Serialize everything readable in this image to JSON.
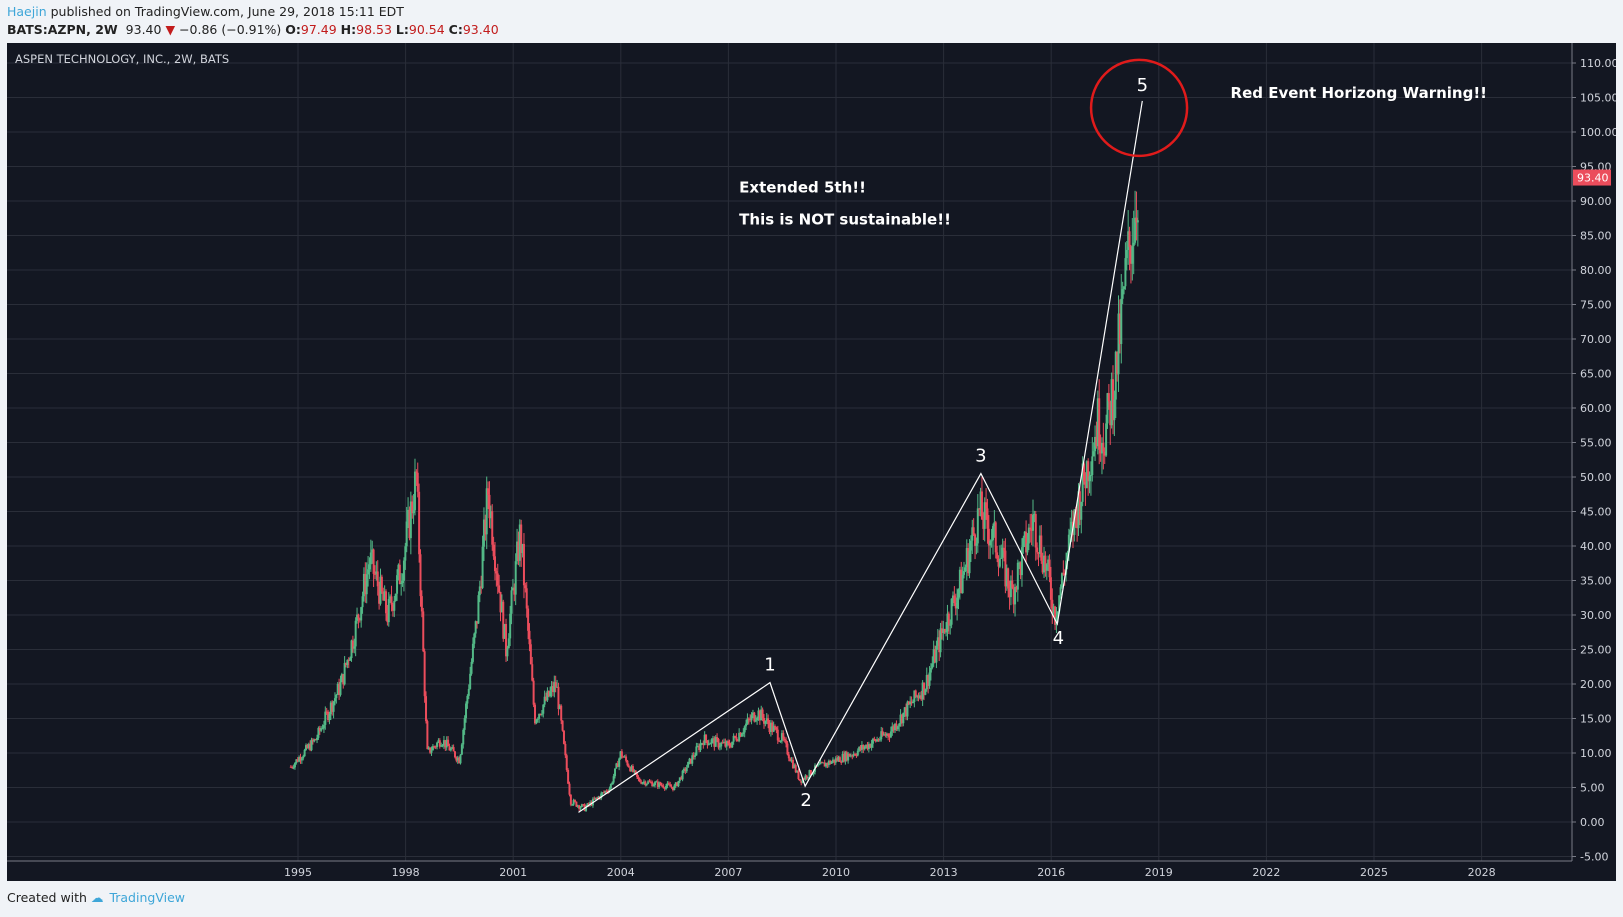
{
  "header": {
    "user": "Haejin",
    "published": "published on TradingView.com, June 29, 2018 15:11 EDT",
    "symbol": "BATS:AZPN, 2W",
    "last": "93.40",
    "change": "−0.86 (−0.91%)",
    "o_label": "O:",
    "o": "97.49",
    "h_label": "H:",
    "h": "98.53",
    "l_label": "L:",
    "l": "90.54",
    "c_label": "C:",
    "c": "93.40"
  },
  "footer": {
    "created": "Created with",
    "brand": "TradingView"
  },
  "colors": {
    "up": "#53b987",
    "down": "#eb4d5c",
    "bg": "#131722",
    "grid": "#2a2e39",
    "annotation_circle": "#e01b1b"
  },
  "chart_data": {
    "type": "candlestick",
    "title": "ASPEN TECHNOLOGY, INC., 2W, BATS",
    "ylim": [
      -5,
      110
    ],
    "yticks": [
      "110.00",
      "105.00",
      "100.00",
      "95.00",
      "90.00",
      "85.00",
      "80.00",
      "75.00",
      "70.00",
      "65.00",
      "60.00",
      "55.00",
      "50.00",
      "45.00",
      "40.00",
      "35.00",
      "30.00",
      "25.00",
      "20.00",
      "15.00",
      "10.00",
      "5.00",
      "0.00",
      "-5.00"
    ],
    "xlim": [
      1989.6,
      2030.7
    ],
    "xticks": [
      "1995",
      "1998",
      "2001",
      "2004",
      "2007",
      "2010",
      "2013",
      "2016",
      "2019",
      "2022",
      "2025",
      "2028"
    ],
    "last_price_label": "93.40",
    "price_path": [
      [
        1994.8,
        8
      ],
      [
        1995.5,
        12
      ],
      [
        1996.2,
        20
      ],
      [
        1996.6,
        28
      ],
      [
        1997.0,
        38
      ],
      [
        1997.5,
        30
      ],
      [
        1997.9,
        37
      ],
      [
        1998.3,
        50
      ],
      [
        1998.6,
        10
      ],
      [
        1999.0,
        12
      ],
      [
        1999.5,
        9
      ],
      [
        2000.0,
        30
      ],
      [
        2000.3,
        48
      ],
      [
        2000.8,
        25
      ],
      [
        2001.2,
        42
      ],
      [
        2001.6,
        15
      ],
      [
        2002.2,
        20
      ],
      [
        2002.6,
        3
      ],
      [
        2003.0,
        2
      ],
      [
        2003.7,
        5
      ],
      [
        2004.0,
        10
      ],
      [
        2004.5,
        6
      ],
      [
        2005.5,
        5
      ],
      [
        2006.3,
        12
      ],
      [
        2007.0,
        11
      ],
      [
        2007.8,
        16
      ],
      [
        2008.5,
        12
      ],
      [
        2009.0,
        6
      ],
      [
        2009.5,
        8
      ],
      [
        2010.5,
        10
      ],
      [
        2011.5,
        13
      ],
      [
        2012.5,
        20
      ],
      [
        2013.0,
        28
      ],
      [
        2013.5,
        35
      ],
      [
        2014.0,
        45
      ],
      [
        2014.5,
        40
      ],
      [
        2014.9,
        33
      ],
      [
        2015.5,
        44
      ],
      [
        2015.9,
        36
      ],
      [
        2016.1,
        30
      ],
      [
        2016.7,
        45
      ],
      [
        2017.3,
        58
      ],
      [
        2017.5,
        56
      ],
      [
        2017.8,
        65
      ],
      [
        2018.1,
        80
      ],
      [
        2018.45,
        93.4
      ]
    ],
    "wave_lines": [
      [
        2002.82,
        1.4
      ],
      [
        2008.16,
        20.2
      ],
      [
        2009.14,
        5.2
      ],
      [
        2014.04,
        50.5
      ],
      [
        2016.17,
        28.7
      ],
      [
        2018.54,
        104.5
      ]
    ],
    "wave_labels": [
      {
        "text": "1",
        "x": 2008.16,
        "y": 20.2
      },
      {
        "text": "2",
        "x": 2009.14,
        "y": 5.2
      },
      {
        "text": "3",
        "x": 2014.04,
        "y": 50.5
      },
      {
        "text": "4",
        "x": 2016.17,
        "y": 28.7
      },
      {
        "text": "5",
        "x": 2018.54,
        "y": 104.5
      }
    ],
    "circle": {
      "x": 2018.45,
      "y": 103.5
    },
    "annotations": [
      {
        "text": "Extended 5th!!",
        "x": 2007.3,
        "y": 91.2
      },
      {
        "text": "This is NOT sustainable!!",
        "x": 2007.3,
        "y": 86.6
      },
      {
        "text": "Red Event Horizong Warning!!",
        "x": 2021.0,
        "y": 104.9
      }
    ]
  }
}
